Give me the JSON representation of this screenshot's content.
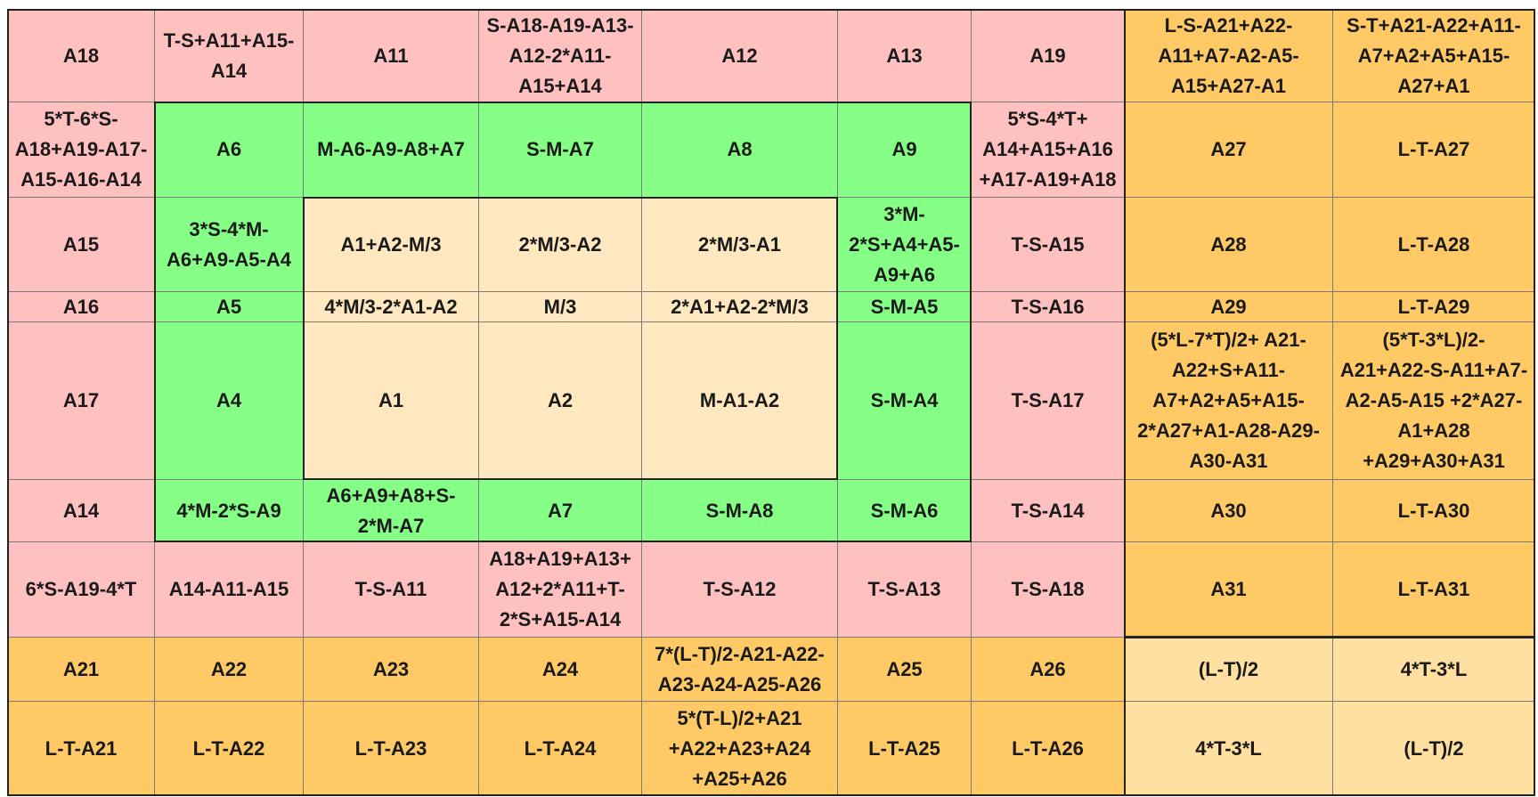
{
  "colors": {
    "pink": "#FFC0C0",
    "green": "#86FF86",
    "cream": "#FFE8C0",
    "orange": "#FFCA66",
    "light": "#FFE0A0"
  },
  "rows": [
    [
      {
        "text": "A18",
        "color": "pink"
      },
      {
        "text": "T-S+A11+A15-\nA14",
        "color": "pink"
      },
      {
        "text": "A11",
        "color": "pink"
      },
      {
        "text": "S-A18-A19-A13-\nA12-2*A11-\nA15+A14",
        "color": "pink"
      },
      {
        "text": "A12",
        "color": "pink"
      },
      {
        "text": "A13",
        "color": "pink"
      },
      {
        "text": "A19",
        "color": "pink"
      },
      {
        "text": "L-S-A21+A22-\nA11+A7-A2-A5-\nA15+A27-A1",
        "color": "orange"
      },
      {
        "text": "S-T+A21-A22+A11-\nA7+A2+A5+A15-\nA27+A1",
        "color": "orange"
      }
    ],
    [
      {
        "text": "5*T-6*S-\nA18+A19-A17-\nA15-A16-A14",
        "color": "pink"
      },
      {
        "text": "A6",
        "color": "green"
      },
      {
        "text": "M-A6-A9-A8+A7",
        "color": "green"
      },
      {
        "text": "S-M-A7",
        "color": "green"
      },
      {
        "text": "A8",
        "color": "green"
      },
      {
        "text": "A9",
        "color": "green"
      },
      {
        "text": "5*S-4*T+\nA14+A15+A16\n+A17-A19+A18",
        "color": "pink"
      },
      {
        "text": "A27",
        "color": "orange"
      },
      {
        "text": "L-T-A27",
        "color": "orange"
      }
    ],
    [
      {
        "text": "A15",
        "color": "pink"
      },
      {
        "text": "3*S-4*M-\nA6+A9-A5-A4",
        "color": "green"
      },
      {
        "text": "A1+A2-M/3",
        "color": "cream"
      },
      {
        "text": "2*M/3-A2",
        "color": "cream"
      },
      {
        "text": "2*M/3-A1",
        "color": "cream"
      },
      {
        "text": "3*M-\n2*S+A4+A5-\nA9+A6",
        "color": "green"
      },
      {
        "text": "T-S-A15",
        "color": "pink"
      },
      {
        "text": "A28",
        "color": "orange"
      },
      {
        "text": "L-T-A28",
        "color": "orange"
      }
    ],
    [
      {
        "text": "A16",
        "color": "pink"
      },
      {
        "text": "A5",
        "color": "green"
      },
      {
        "text": "4*M/3-2*A1-A2",
        "color": "cream"
      },
      {
        "text": "M/3",
        "color": "cream"
      },
      {
        "text": "2*A1+A2-2*M/3",
        "color": "cream"
      },
      {
        "text": "S-M-A5",
        "color": "green"
      },
      {
        "text": "T-S-A16",
        "color": "pink"
      },
      {
        "text": "A29",
        "color": "orange"
      },
      {
        "text": "L-T-A29",
        "color": "orange"
      }
    ],
    [
      {
        "text": "A17",
        "color": "pink"
      },
      {
        "text": "A4",
        "color": "green"
      },
      {
        "text": "A1",
        "color": "cream"
      },
      {
        "text": "A2",
        "color": "cream"
      },
      {
        "text": "M-A1-A2",
        "color": "cream"
      },
      {
        "text": "S-M-A4",
        "color": "green"
      },
      {
        "text": "T-S-A17",
        "color": "pink"
      },
      {
        "text": "(5*L-7*T)/2+ A21-\nA22+S+A11-\nA7+A2+A5+A15-\n2*A27+A1-A28-A29-\nA30-A31",
        "color": "orange"
      },
      {
        "text": "(5*T-3*L)/2-\nA21+A22-S-A11+A7-\nA2-A5-A15 +2*A27-\nA1+A28\n+A29+A30+A31",
        "color": "orange"
      }
    ],
    [
      {
        "text": "A14",
        "color": "pink"
      },
      {
        "text": "4*M-2*S-A9",
        "color": "green"
      },
      {
        "text": "A6+A9+A8+S-\n2*M-A7",
        "color": "green"
      },
      {
        "text": "A7",
        "color": "green"
      },
      {
        "text": "S-M-A8",
        "color": "green"
      },
      {
        "text": "S-M-A6",
        "color": "green"
      },
      {
        "text": "T-S-A14",
        "color": "pink"
      },
      {
        "text": "A30",
        "color": "orange"
      },
      {
        "text": "L-T-A30",
        "color": "orange"
      }
    ],
    [
      {
        "text": "6*S-A19-4*T",
        "color": "pink"
      },
      {
        "text": "A14-A11-A15",
        "color": "pink"
      },
      {
        "text": "T-S-A11",
        "color": "pink"
      },
      {
        "text": "A18+A19+A13+\nA12+2*A11+T-\n2*S+A15-A14",
        "color": "pink"
      },
      {
        "text": "T-S-A12",
        "color": "pink"
      },
      {
        "text": "T-S-A13",
        "color": "pink"
      },
      {
        "text": "T-S-A18",
        "color": "pink"
      },
      {
        "text": "A31",
        "color": "orange"
      },
      {
        "text": "L-T-A31",
        "color": "orange"
      }
    ],
    [
      {
        "text": "A21",
        "color": "orange"
      },
      {
        "text": "A22",
        "color": "orange"
      },
      {
        "text": "A23",
        "color": "orange"
      },
      {
        "text": "A24",
        "color": "orange"
      },
      {
        "text": "7*(L-T)/2-A21-A22-\nA23-A24-A25-A26",
        "color": "orange"
      },
      {
        "text": "A25",
        "color": "orange"
      },
      {
        "text": "A26",
        "color": "orange"
      },
      {
        "text": "(L-T)/2",
        "color": "light"
      },
      {
        "text": "4*T-3*L",
        "color": "light"
      }
    ],
    [
      {
        "text": "L-T-A21",
        "color": "orange"
      },
      {
        "text": "L-T-A22",
        "color": "orange"
      },
      {
        "text": "L-T-A23",
        "color": "orange"
      },
      {
        "text": "L-T-A24",
        "color": "orange"
      },
      {
        "text": "5*(T-L)/2+A21\n+A22+A23+A24\n+A25+A26",
        "color": "orange"
      },
      {
        "text": "L-T-A25",
        "color": "orange"
      },
      {
        "text": "L-T-A26",
        "color": "orange"
      },
      {
        "text": "4*T-3*L",
        "color": "light"
      },
      {
        "text": "(L-T)/2",
        "color": "light"
      }
    ]
  ]
}
